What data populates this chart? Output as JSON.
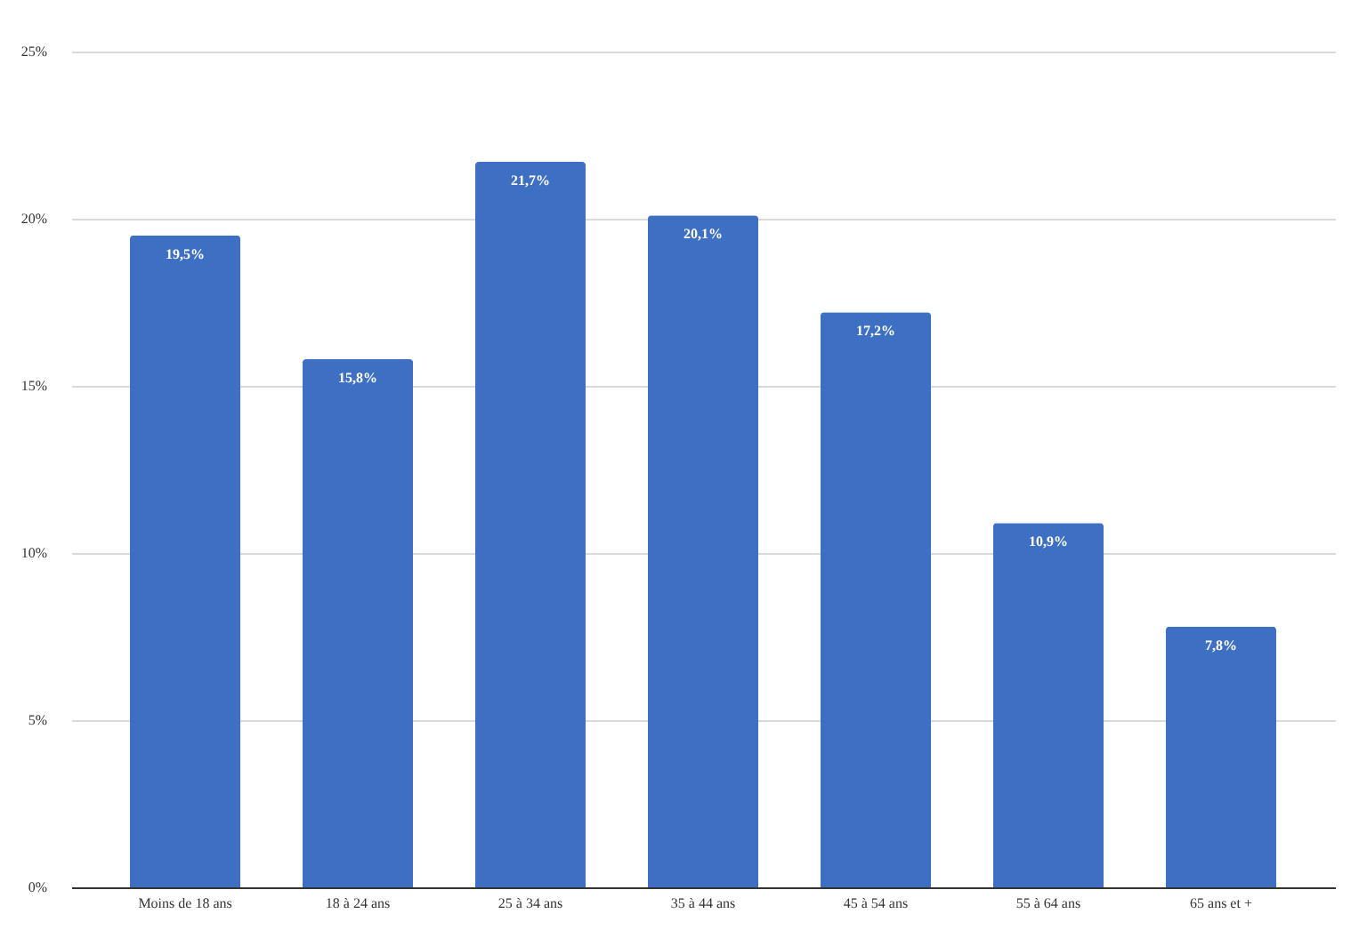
{
  "chart_data": {
    "type": "bar",
    "categories": [
      "Moins de 18 ans",
      "18 à 24 ans",
      "25 à 34 ans",
      "35 à 44 ans",
      "45 à 54 ans",
      "55 à 64 ans",
      "65 ans et +"
    ],
    "values": [
      19.5,
      15.8,
      21.7,
      20.1,
      17.2,
      10.9,
      7.8
    ],
    "value_labels": [
      "19,5%",
      "15,8%",
      "21,7%",
      "20,1%",
      "17,2%",
      "10,9%",
      "7,8%"
    ],
    "color": "#3d6fc2",
    "ylim": [
      0,
      25
    ],
    "yticks": [
      {
        "value": 0,
        "label": "0%"
      },
      {
        "value": 5,
        "label": "5%"
      },
      {
        "value": 10,
        "label": "10%"
      },
      {
        "value": 15,
        "label": "15%"
      },
      {
        "value": 20,
        "label": "20%"
      },
      {
        "value": 25,
        "label": "25%"
      }
    ],
    "grid": "y"
  }
}
